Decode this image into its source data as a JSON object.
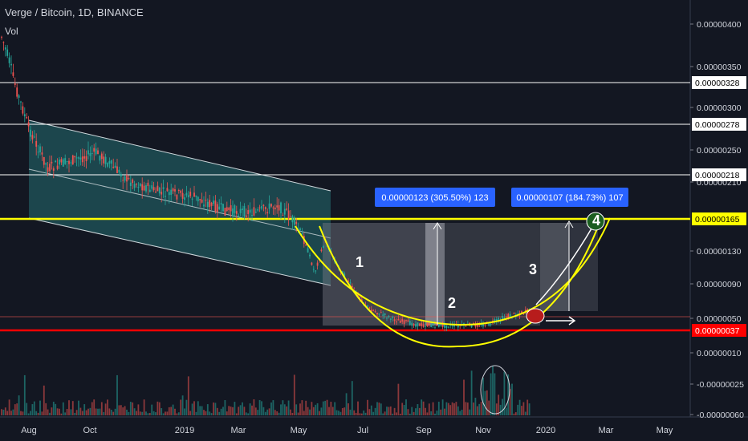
{
  "header": {
    "symbol_title": "Verge / Bitcoin, 1D, BINANCE",
    "volume_label": "Vol"
  },
  "colors": {
    "background": "#131722",
    "up": "#26a69a",
    "down": "#ef5350",
    "yellow": "#ffff00",
    "red_line": "#ff0000",
    "white_line": "#ffffff",
    "label_blue": "#2962ff",
    "channel_fill": "#1f4f55"
  },
  "chart_data": {
    "type": "candlestick",
    "x_ticks": [
      "Aug",
      "Oct",
      "2019",
      "Mar",
      "May",
      "Jul",
      "Sep",
      "Nov",
      "2020",
      "Mar",
      "May"
    ],
    "y_ticks": [
      "0.00000400",
      "0.00000350",
      "0.00000300",
      "0.00000250",
      "0.00000210",
      "0.00000130",
      "0.00000090",
      "0.00000050",
      "0.00000010",
      "-0.00000025",
      "-0.00000060"
    ],
    "horizontal_levels": [
      {
        "label": "0.00000328",
        "color": "#ffffff"
      },
      {
        "label": "0.00000278",
        "color": "#ffffff"
      },
      {
        "label": "0.00000218",
        "color": "#ffffff"
      },
      {
        "label": "0.00000165",
        "color": "#ffff00"
      },
      {
        "label": "0.00000037",
        "color": "#ff0000"
      }
    ],
    "annotations": [
      {
        "label": "0.00000123 (305.50%) 123"
      },
      {
        "label": "0.00000107 (184.73%) 107"
      }
    ],
    "pattern_labels": [
      "1",
      "2",
      "3",
      "4"
    ]
  }
}
